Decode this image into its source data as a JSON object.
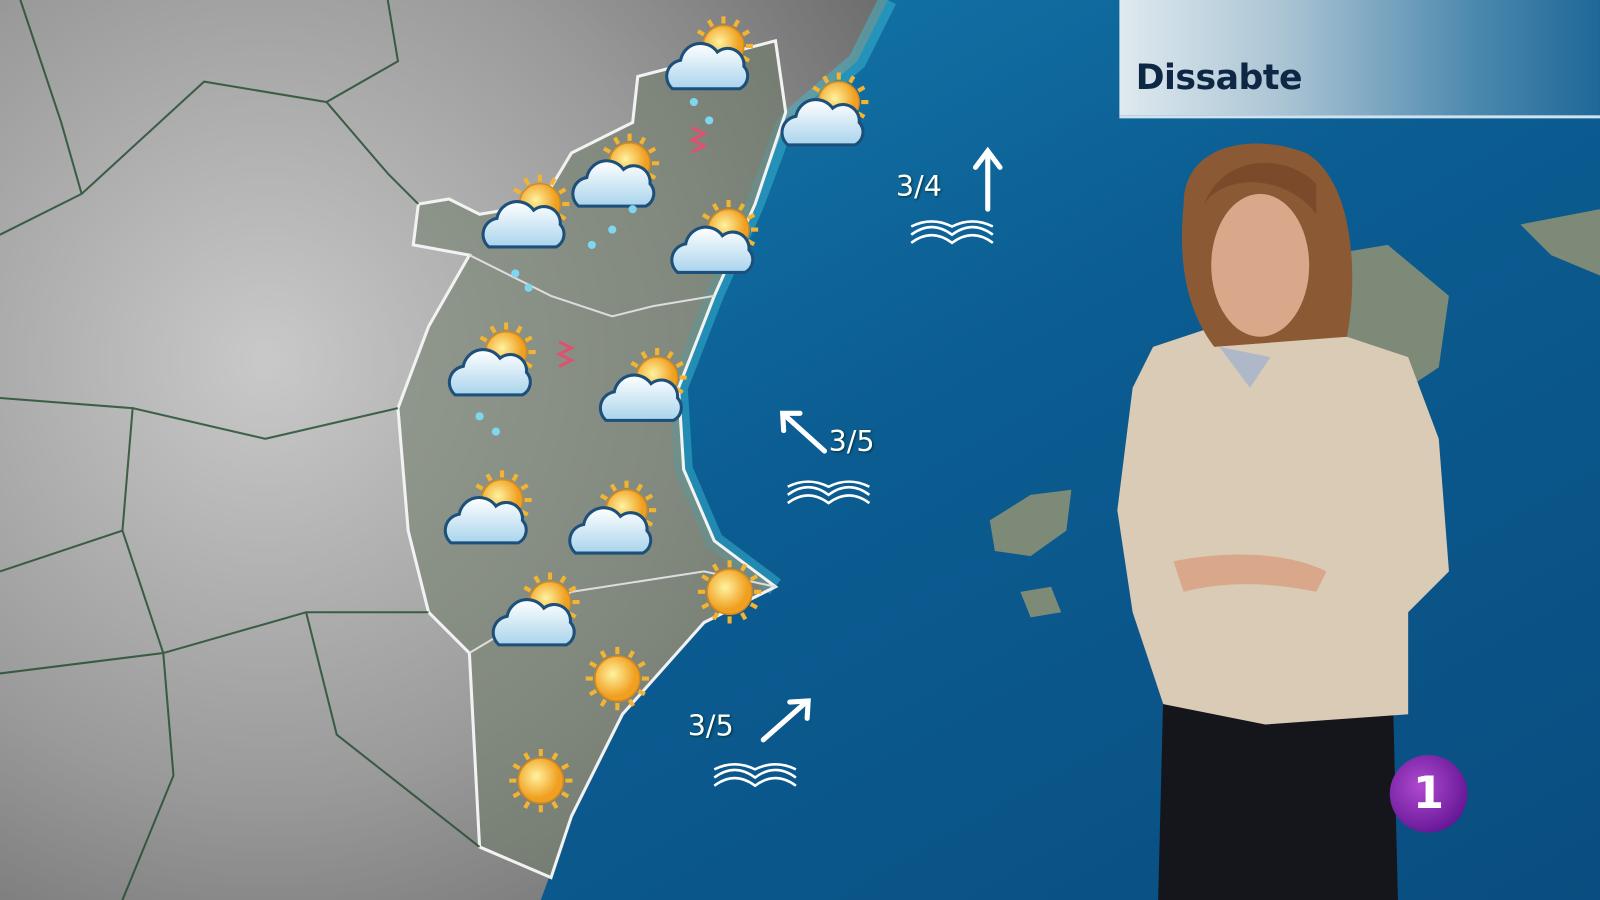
{
  "header": {
    "day_label": "Dissabte"
  },
  "forecast_icons": [
    {
      "type": "sun-behind-cloud-icon"
    },
    {
      "type": "sun-behind-cloud-icon"
    },
    {
      "type": "sun-behind-cloud-icon"
    },
    {
      "type": "sun-behind-cloud-icon"
    },
    {
      "type": "sun-behind-cloud-icon"
    },
    {
      "type": "sun-behind-cloud-icon"
    },
    {
      "type": "sun-behind-cloud-icon"
    },
    {
      "type": "sun-behind-cloud-icon"
    },
    {
      "type": "sun-behind-cloud-icon"
    },
    {
      "type": "sun-behind-cloud-icon"
    },
    {
      "type": "sun-icon"
    },
    {
      "type": "sun-icon"
    },
    {
      "type": "sun-icon"
    }
  ],
  "sea_state": [
    {
      "force": "3/4",
      "direction": "north",
      "icon": "waves-icon"
    },
    {
      "force": "3/5",
      "direction": "north-west",
      "icon": "waves-icon"
    },
    {
      "force": "3/5",
      "direction": "north-east",
      "icon": "waves-icon"
    }
  ],
  "channel_logo": {
    "text": "1"
  },
  "colors": {
    "sea": "#0d5a8c",
    "land": "#8c8f8a",
    "region": "#6f7a6a",
    "sun": "#f2b431",
    "title_text": "#0e2744",
    "logo": "#7a23a8"
  }
}
